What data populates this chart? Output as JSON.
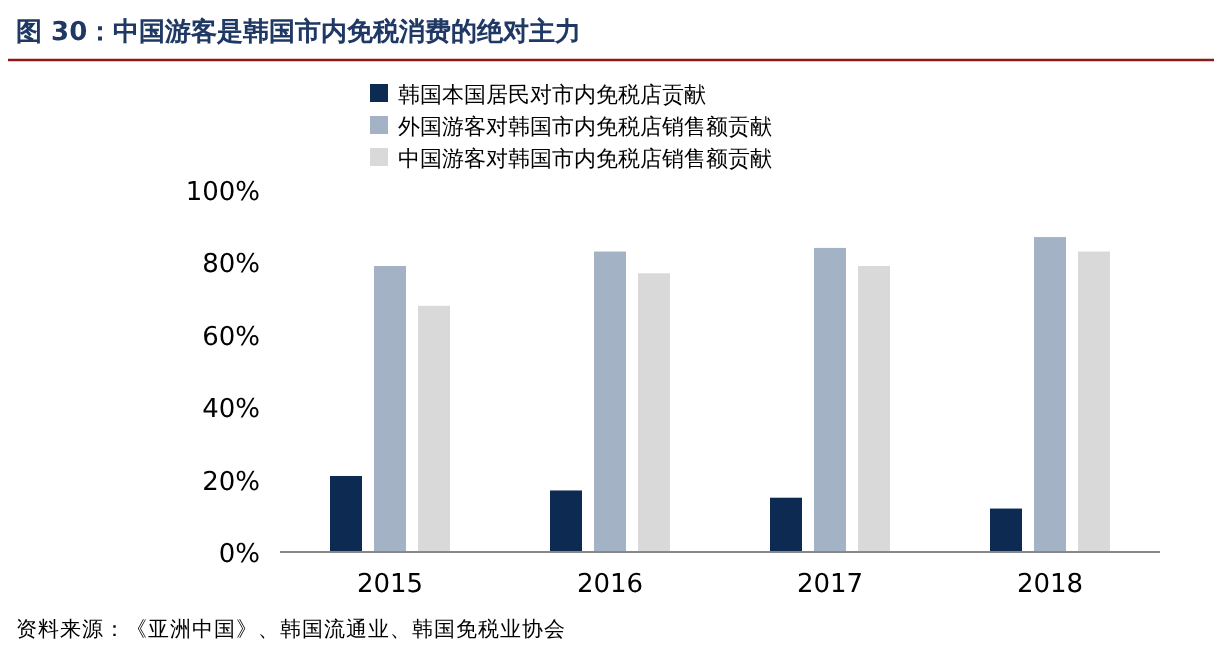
{
  "chart_data": {
    "type": "bar",
    "title": "图 30：中国游客是韩国市内免税消费的绝对主力",
    "categories": [
      "2015",
      "2016",
      "2017",
      "2018"
    ],
    "series": [
      {
        "name": "韩国本国居民对市内免税店贡献",
        "color": "#0d2a52",
        "values": [
          21,
          17,
          15,
          12
        ]
      },
      {
        "name": "外国游客对韩国市内免税店销售额贡献",
        "color": "#a3b2c4",
        "values": [
          79,
          83,
          84,
          87
        ]
      },
      {
        "name": "中国游客对韩国市内免税店销售额贡献",
        "color": "#d9d9d9",
        "values": [
          68,
          77,
          79,
          83
        ]
      }
    ],
    "ylim": [
      0,
      100
    ],
    "yticks": [
      {
        "value": 0,
        "label": "0%"
      },
      {
        "value": 20,
        "label": "20%"
      },
      {
        "value": 40,
        "label": "40%"
      },
      {
        "value": 60,
        "label": "60%"
      },
      {
        "value": 80,
        "label": "80%"
      },
      {
        "value": 100,
        "label": "100%"
      }
    ],
    "legend": "top",
    "grid": false,
    "annotations": [
      "资料来源：《亚洲中国》、韩国流通业、韩国免税业协会"
    ]
  }
}
